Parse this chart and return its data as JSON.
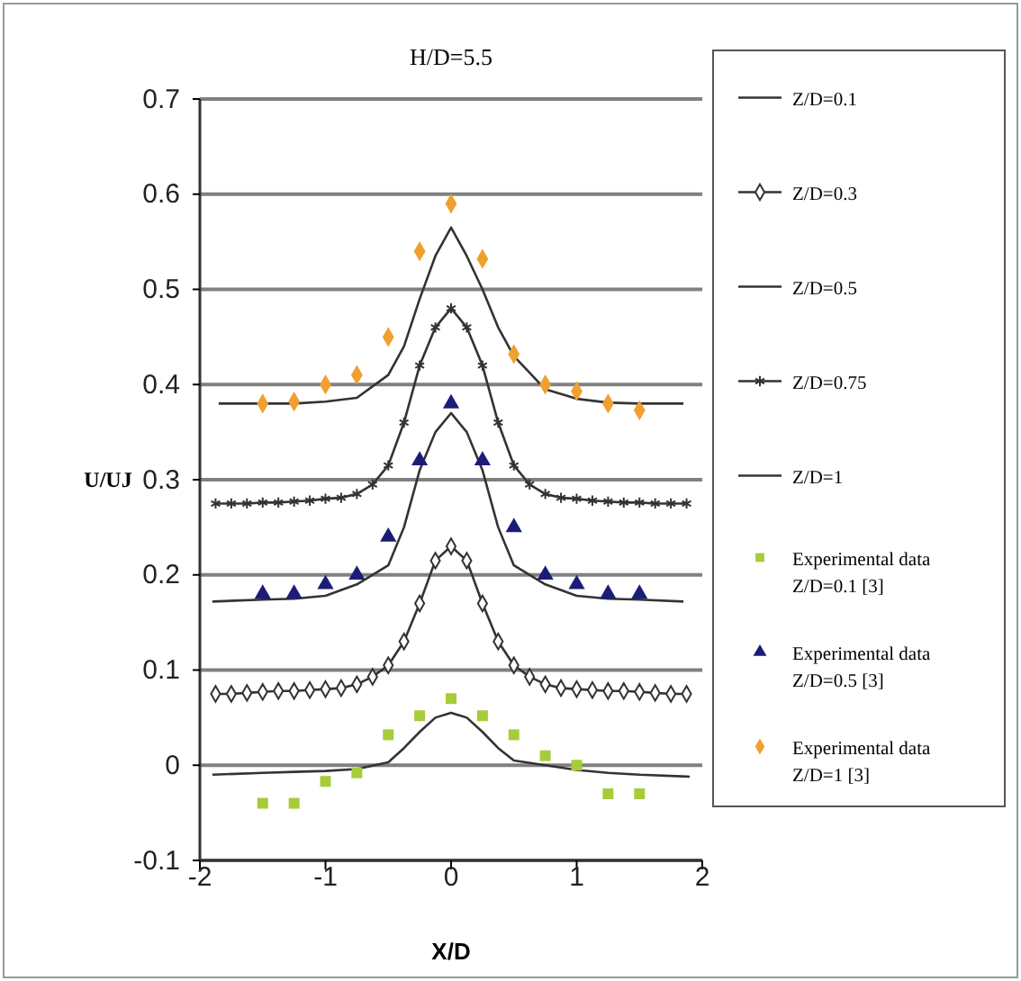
{
  "chart_data": {
    "type": "line",
    "title": "H/D=5.5",
    "xlabel": "X/D",
    "ylabel": "U/UJ",
    "xlim": [
      -2,
      2
    ],
    "ylim": [
      -0.1,
      0.7
    ],
    "xticks": [
      -2,
      -1,
      0,
      1,
      2
    ],
    "yticks": [
      -0.1,
      0,
      0.1,
      0.2,
      0.3,
      0.4,
      0.5,
      0.6,
      0.7
    ],
    "grid": "y",
    "legend": "right",
    "series": [
      {
        "name": "Z/D=0.1",
        "marker": "none",
        "color": "#333333",
        "x": [
          -1.9,
          -1.5,
          -1.25,
          -1,
          -0.75,
          -0.5,
          -0.375,
          -0.25,
          -0.125,
          0,
          0.125,
          0.25,
          0.375,
          0.5,
          0.75,
          1,
          1.25,
          1.5,
          1.9
        ],
        "values": [
          -0.01,
          -0.008,
          -0.007,
          -0.006,
          -0.004,
          0.003,
          0.018,
          0.035,
          0.05,
          0.055,
          0.05,
          0.035,
          0.018,
          0.005,
          0,
          -0.005,
          -0.008,
          -0.01,
          -0.012
        ]
      },
      {
        "name": "Z/D=0.3",
        "marker": "diamond",
        "color": "#333333",
        "x": [
          -1.875,
          -1.75,
          -1.625,
          -1.5,
          -1.375,
          -1.25,
          -1.125,
          -1,
          -0.875,
          -0.75,
          -0.625,
          -0.5,
          -0.375,
          -0.25,
          -0.125,
          0,
          0.125,
          0.25,
          0.375,
          0.5,
          0.625,
          0.75,
          0.875,
          1,
          1.125,
          1.25,
          1.375,
          1.5,
          1.625,
          1.75,
          1.875
        ],
        "values": [
          0.075,
          0.075,
          0.076,
          0.077,
          0.078,
          0.078,
          0.079,
          0.08,
          0.081,
          0.085,
          0.093,
          0.105,
          0.13,
          0.17,
          0.215,
          0.23,
          0.215,
          0.17,
          0.13,
          0.105,
          0.093,
          0.085,
          0.081,
          0.08,
          0.079,
          0.078,
          0.078,
          0.077,
          0.076,
          0.075,
          0.075
        ]
      },
      {
        "name": "Z/D=0.5",
        "marker": "none",
        "color": "#333333",
        "x": [
          -1.9,
          -1.5,
          -1.25,
          -1,
          -0.75,
          -0.5,
          -0.375,
          -0.25,
          -0.125,
          0,
          0.125,
          0.25,
          0.375,
          0.5,
          0.75,
          1,
          1.25,
          1.5,
          1.85
        ],
        "values": [
          0.172,
          0.174,
          0.175,
          0.178,
          0.19,
          0.21,
          0.25,
          0.31,
          0.35,
          0.37,
          0.35,
          0.31,
          0.25,
          0.21,
          0.19,
          0.178,
          0.175,
          0.174,
          0.172
        ]
      },
      {
        "name": "Z/D=0.75",
        "marker": "cross",
        "color": "#333333",
        "x": [
          -1.875,
          -1.75,
          -1.625,
          -1.5,
          -1.375,
          -1.25,
          -1.125,
          -1,
          -0.875,
          -0.75,
          -0.625,
          -0.5,
          -0.375,
          -0.25,
          -0.125,
          0,
          0.125,
          0.25,
          0.375,
          0.5,
          0.625,
          0.75,
          0.875,
          1,
          1.125,
          1.25,
          1.375,
          1.5,
          1.625,
          1.75,
          1.875
        ],
        "values": [
          0.275,
          0.275,
          0.275,
          0.276,
          0.276,
          0.277,
          0.278,
          0.28,
          0.281,
          0.285,
          0.295,
          0.315,
          0.36,
          0.42,
          0.46,
          0.48,
          0.46,
          0.42,
          0.36,
          0.315,
          0.295,
          0.285,
          0.281,
          0.28,
          0.278,
          0.277,
          0.276,
          0.276,
          0.275,
          0.275,
          0.275
        ]
      },
      {
        "name": "Z/D=1",
        "marker": "none",
        "color": "#333333",
        "x": [
          -1.85,
          -1.25,
          -1,
          -0.75,
          -0.5,
          -0.375,
          -0.25,
          -0.125,
          0,
          0.125,
          0.25,
          0.375,
          0.5,
          0.75,
          1,
          1.25,
          1.5,
          1.85
        ],
        "values": [
          0.38,
          0.38,
          0.382,
          0.386,
          0.41,
          0.44,
          0.49,
          0.535,
          0.565,
          0.535,
          0.5,
          0.46,
          0.43,
          0.395,
          0.385,
          0.381,
          0.38,
          0.38
        ]
      },
      {
        "name": "Experimental data Z/D=0.1 [3]",
        "type": "scatter",
        "marker": "square",
        "color": "#a6cc3a",
        "x": [
          -1.5,
          -1.25,
          -1,
          -0.75,
          -0.5,
          -0.25,
          0,
          0.25,
          0.5,
          0.75,
          1,
          1.25,
          1.5
        ],
        "values": [
          -0.04,
          -0.04,
          -0.017,
          -0.008,
          0.032,
          0.052,
          0.07,
          0.052,
          0.032,
          0.01,
          0,
          -0.03,
          -0.03
        ]
      },
      {
        "name": "Experimental data Z/D=0.5 [3]",
        "type": "scatter",
        "marker": "triangle",
        "color": "#1c1c78",
        "x": [
          -1.5,
          -1.25,
          -1,
          -0.75,
          -0.5,
          -0.25,
          0,
          0.25,
          0.5,
          0.75,
          1,
          1.25,
          1.5
        ],
        "values": [
          0.18,
          0.18,
          0.19,
          0.2,
          0.24,
          0.32,
          0.38,
          0.32,
          0.25,
          0.2,
          0.19,
          0.18,
          0.18
        ]
      },
      {
        "name": "Experimental data Z/D=1 [3]",
        "type": "scatter",
        "marker": "diamond",
        "color": "#f0a030",
        "x": [
          -1.5,
          -1.25,
          -1,
          -0.75,
          -0.5,
          -0.25,
          0,
          0.25,
          0.5,
          0.75,
          1,
          1.25,
          1.5
        ],
        "values": [
          0.38,
          0.382,
          0.4,
          0.41,
          0.45,
          0.54,
          0.59,
          0.532,
          0.432,
          0.4,
          0.393,
          0.38,
          0.373
        ]
      }
    ]
  }
}
